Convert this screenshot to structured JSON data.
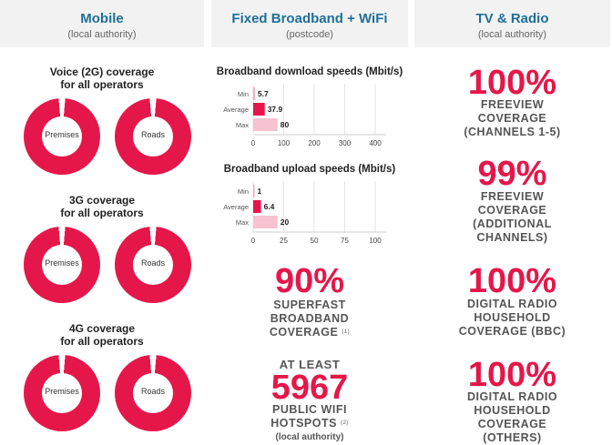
{
  "columns": {
    "mobile": {
      "title": "Mobile",
      "subtitle": "(local authority)"
    },
    "broadband": {
      "title": "Fixed Broadband + WiFi",
      "subtitle": "(postcode)"
    },
    "tv": {
      "title": "TV & Radio",
      "subtitle": "(local authority)"
    }
  },
  "mobile": {
    "sections": [
      {
        "title_line1": "Voice (2G) coverage",
        "title_line2": "for all operators",
        "left": "Premises",
        "right": "Roads"
      },
      {
        "title_line1": "3G coverage",
        "title_line2": "for all operators",
        "left": "Premises",
        "right": "Roads"
      },
      {
        "title_line1": "4G coverage",
        "title_line2": "for all operators",
        "left": "Premises",
        "right": "Roads"
      }
    ]
  },
  "chart_data": [
    {
      "type": "bar",
      "title": "Broadband download speeds (Mbit/s)",
      "categories": [
        "Min",
        "Average",
        "Max"
      ],
      "values": [
        5.7,
        37.9,
        80
      ],
      "value_labels": [
        "5.7",
        "37.9",
        "80"
      ],
      "xticks": [
        "0",
        "100",
        "200",
        "300",
        "400"
      ],
      "xlim": [
        0,
        400
      ],
      "colors": [
        "#f4a6bd",
        "#e5174a",
        "#f7c2d1"
      ]
    },
    {
      "type": "bar",
      "title": "Broadband upload speeds (Mbit/s)",
      "categories": [
        "Min",
        "Average",
        "Max"
      ],
      "values": [
        1,
        6.4,
        20
      ],
      "value_labels": [
        "1",
        "6.4",
        "20"
      ],
      "xticks": [
        "0",
        "25",
        "50",
        "75",
        "100"
      ],
      "xlim": [
        0,
        100
      ],
      "colors": [
        "#f4a6bd",
        "#e5174a",
        "#f7c2d1"
      ]
    }
  ],
  "broadband": {
    "superfast": {
      "value": "90%",
      "line1": "SUPERFAST",
      "line2": "BROADBAND",
      "line3": "COVERAGE",
      "note": "(1)"
    },
    "wifi": {
      "prefix": "AT LEAST",
      "value": "5967",
      "line1": "PUBLIC WIFI",
      "line2": "HOTSPOTS",
      "note": "(2)",
      "line3": "(local authority)"
    }
  },
  "tv": {
    "stats": [
      {
        "value": "100%",
        "lines": [
          "FREEVIEW",
          "COVERAGE",
          "(CHANNELS 1-5)"
        ]
      },
      {
        "value": "99%",
        "lines": [
          "FREEVIEW",
          "COVERAGE",
          "(ADDITIONAL",
          "CHANNELS)"
        ]
      },
      {
        "value": "100%",
        "lines": [
          "DIGITAL RADIO",
          "HOUSEHOLD",
          "COVERAGE (BBC)"
        ]
      },
      {
        "value": "100%",
        "lines": [
          "DIGITAL RADIO",
          "HOUSEHOLD",
          "COVERAGE",
          "(OTHERS)"
        ]
      }
    ]
  },
  "colors": {
    "accent": "#e5174a",
    "heading": "#1f6f9a",
    "header_bg": "#f2f2f2"
  }
}
